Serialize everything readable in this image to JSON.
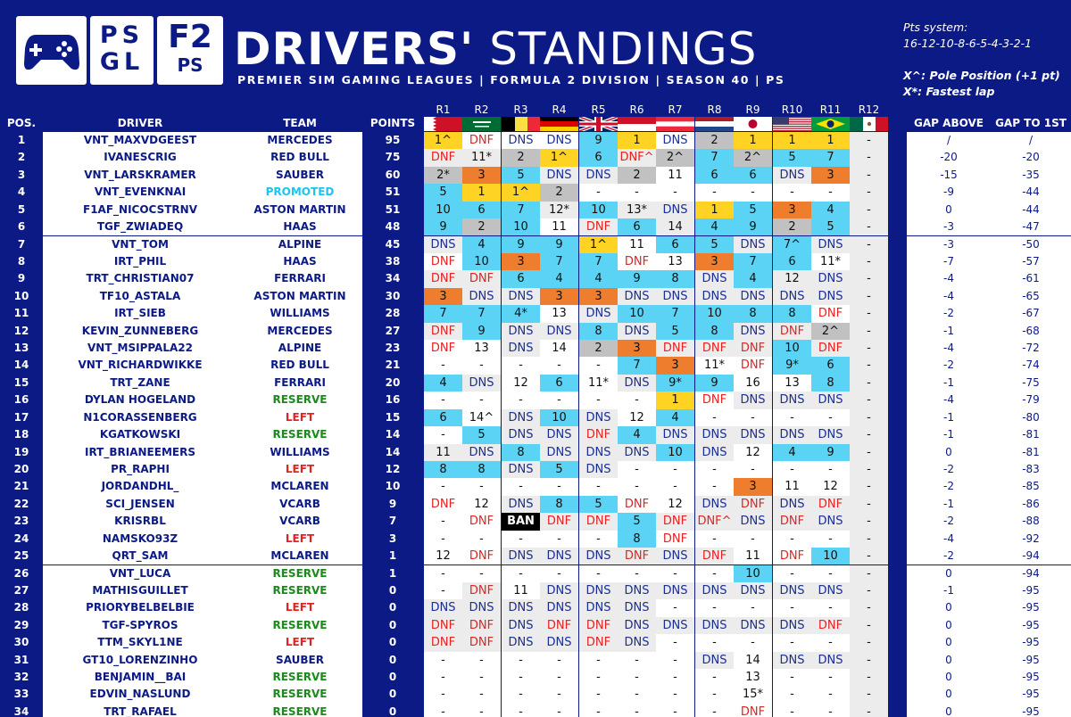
{
  "logos": {
    "logo1_icon": "gamepad-icon",
    "logo2": [
      "PS",
      "GL"
    ],
    "logo3": [
      "F2",
      "PS"
    ]
  },
  "title": {
    "bold": "DRIVERS'",
    "light": "STANDINGS"
  },
  "subtitle": "PREMIER SIM GAMING LEAGUES | FORMULA 2 DIVISION | SEASON 40 | PS",
  "points_system": {
    "label": "Pts system:",
    "value": "16-12-10-8-6-5-4-3-2-1",
    "legend": [
      "X^: Pole Position (+1 pt)",
      "X*: Fastest lap"
    ]
  },
  "colors": {
    "bg": "#0c1a85",
    "gold": "#ffd324",
    "silver": "#c1c1c1",
    "bronze": "#ee7e2e",
    "points": "#5bd3f5",
    "dnf": "#e52222",
    "dns": "#1b2e92",
    "reserve": "#1a8a1a",
    "left": "#e52222",
    "promoted": "#1fc3ef",
    "team": "#0c1a85"
  },
  "columns": {
    "pos": "POS.",
    "driver": "DRIVER",
    "team": "TEAM",
    "points": "POINTS",
    "gap_above": "GAP ABOVE",
    "gap_first": "GAP TO 1ST"
  },
  "rounds": [
    "R1",
    "R2",
    "R3",
    "R4",
    "R5",
    "R6",
    "R7",
    "R8",
    "R9",
    "R10",
    "R11",
    "R12"
  ],
  "flags": [
    "flag-bahrain-icon",
    "flag-saudi-arabia-icon",
    "flag-belgium-icon",
    "flag-germany-icon",
    "flag-united-kingdom-icon",
    "flag-monaco-icon",
    "flag-austria-icon",
    "flag-netherlands-icon",
    "flag-japan-icon",
    "flag-usa-icon",
    "flag-brazil-icon",
    "flag-mexico-icon"
  ],
  "rows": [
    {
      "pos": "1",
      "driver": "VNT_MAXVDGEEST",
      "team": "MERCEDES",
      "tc": "team",
      "points": "95",
      "r": [
        "1^",
        "DNF",
        "DNS",
        "DNS",
        "9",
        "1",
        "DNS",
        "2",
        "1",
        "1",
        "1",
        "-"
      ],
      "c": "YWWWBYWSYYYL",
      "ga": "/",
      "gf": "/"
    },
    {
      "pos": "2",
      "driver": "IVANESCRIG",
      "team": "RED BULL",
      "tc": "team",
      "points": "75",
      "r": [
        "DNF",
        "11*",
        "2",
        "1^",
        "6",
        "DNF^",
        "2^",
        "7",
        "2^",
        "5",
        "7",
        "-"
      ],
      "c": "LLSYBLSBSBBL",
      "ga": "-20",
      "gf": "-20"
    },
    {
      "pos": "3",
      "driver": "VNT_LARSKRAMER",
      "team": "SAUBER",
      "tc": "team",
      "points": "60",
      "r": [
        "2*",
        "3",
        "5",
        "DNS",
        "DNS",
        "2",
        "11",
        "6",
        "6",
        "DNS",
        "3",
        "-"
      ],
      "c": "SOBLLSWBBLOL",
      "ga": "-15",
      "gf": "-35"
    },
    {
      "pos": "4",
      "driver": "VNT_EVENKNAI",
      "team": "PROMOTED",
      "tc": "promoted",
      "points": "51",
      "r": [
        "5",
        "1",
        "1^",
        "2",
        "-",
        "-",
        "-",
        "-",
        "-",
        "-",
        "-",
        "-"
      ],
      "c": "BYYSWWWWWWWL",
      "ga": "-9",
      "gf": "-44"
    },
    {
      "pos": "5",
      "driver": "F1AF_NICOCSTRNV",
      "team": "ASTON MARTIN",
      "tc": "team",
      "points": "51",
      "r": [
        "10",
        "6",
        "7",
        "12*",
        "10",
        "13*",
        "DNS",
        "1",
        "5",
        "3",
        "4",
        "-"
      ],
      "c": "BBBLBLLYBOBL",
      "ga": "0",
      "gf": "-44"
    },
    {
      "pos": "6",
      "driver": "TGF_ZWIADEQ",
      "team": "HAAS",
      "tc": "team",
      "points": "48",
      "r": [
        "9",
        "2",
        "10",
        "11",
        "DNF",
        "6",
        "14",
        "4",
        "9",
        "2",
        "5",
        "-"
      ],
      "c": "BSBWLBLBBSBL",
      "ga": "-3",
      "gf": "-47"
    },
    {
      "pos": "7",
      "driver": "VNT_TOM",
      "team": "ALPINE",
      "tc": "team",
      "points": "45",
      "r": [
        "DNS",
        "4",
        "9",
        "9",
        "1^",
        "11",
        "6",
        "5",
        "DNS",
        "7^",
        "DNS",
        "-"
      ],
      "c": "LBBBYWBBLBLL",
      "ga": "-3",
      "gf": "-50"
    },
    {
      "pos": "8",
      "driver": "IRT_PHIL",
      "team": "HAAS",
      "tc": "team",
      "points": "38",
      "r": [
        "DNF",
        "10",
        "3",
        "7",
        "7",
        "DNF",
        "13",
        "3",
        "7",
        "6",
        "11*",
        "-"
      ],
      "c": "WBOBBWWOBBWL",
      "ga": "-7",
      "gf": "-57"
    },
    {
      "pos": "9",
      "driver": "TRT_CHRISTIAN07",
      "team": "FERRARI",
      "tc": "team",
      "points": "34",
      "r": [
        "DNF",
        "DNF",
        "6",
        "4",
        "4",
        "9",
        "8",
        "DNS",
        "4",
        "12",
        "DNS",
        "-"
      ],
      "c": "LLBBBBBLBLLL",
      "ga": "-4",
      "gf": "-61"
    },
    {
      "pos": "10",
      "driver": "TF10_ASTALA",
      "team": "ASTON MARTIN",
      "tc": "team",
      "points": "30",
      "r": [
        "3",
        "DNS",
        "DNS",
        "3",
        "3",
        "DNS",
        "DNS",
        "DNS",
        "DNS",
        "DNS",
        "DNS",
        "-"
      ],
      "c": "OLLOOLLLLLLL",
      "ga": "-4",
      "gf": "-65"
    },
    {
      "pos": "11",
      "driver": "IRT_SIEB",
      "team": "WILLIAMS",
      "tc": "team",
      "points": "28",
      "r": [
        "7",
        "7",
        "4*",
        "13",
        "DNS",
        "10",
        "7",
        "10",
        "8",
        "8",
        "DNF",
        "-"
      ],
      "c": "BBBWLBBBBBWL",
      "ga": "-2",
      "gf": "-67"
    },
    {
      "pos": "12",
      "driver": "KEVIN_ZUNNEBERG",
      "team": "MERCEDES",
      "tc": "team",
      "points": "27",
      "r": [
        "DNF",
        "9",
        "DNS",
        "DNS",
        "8",
        "DNS",
        "5",
        "8",
        "DNS",
        "DNF",
        "2^",
        "-"
      ],
      "c": "LBLLBLBBLLSL",
      "ga": "-1",
      "gf": "-68"
    },
    {
      "pos": "13",
      "driver": "VNT_MSIPPALA22",
      "team": "ALPINE",
      "tc": "team",
      "points": "23",
      "r": [
        "DNF",
        "13",
        "DNS",
        "14",
        "2",
        "3",
        "DNF",
        "DNF",
        "DNF",
        "10",
        "DNF",
        "-"
      ],
      "c": "WWLWSOLLLBLL",
      "ga": "-4",
      "gf": "-72"
    },
    {
      "pos": "14",
      "driver": "VNT_RICHARDWIKKE",
      "team": "RED BULL",
      "tc": "team",
      "points": "21",
      "r": [
        "-",
        "-",
        "-",
        "-",
        "-",
        "7",
        "3",
        "11*",
        "DNF",
        "9*",
        "6",
        "-"
      ],
      "c": "WWWWWBOWWBBL",
      "ga": "-2",
      "gf": "-74"
    },
    {
      "pos": "15",
      "driver": "TRT_ZANE",
      "team": "FERRARI",
      "tc": "team",
      "points": "20",
      "r": [
        "4",
        "DNS",
        "12",
        "6",
        "11*",
        "DNS",
        "9*",
        "9",
        "16",
        "13",
        "8",
        "-"
      ],
      "c": "BLWBWLBBWWBL",
      "ga": "-1",
      "gf": "-75"
    },
    {
      "pos": "16",
      "driver": "DYLAN HOGELAND",
      "team": "RESERVE",
      "tc": "reserve",
      "points": "16",
      "r": [
        "-",
        "-",
        "-",
        "-",
        "-",
        "-",
        "1",
        "DNF",
        "DNS",
        "DNS",
        "DNS",
        "-"
      ],
      "c": "WWWWWWYWLLLL",
      "ga": "-4",
      "gf": "-79"
    },
    {
      "pos": "17",
      "driver": "N1CORASSENBERG",
      "team": "LEFT",
      "tc": "left",
      "points": "15",
      "r": [
        "6",
        "14^",
        "DNS",
        "10",
        "DNS",
        "12",
        "4",
        "-",
        "-",
        "-",
        "-",
        "-"
      ],
      "c": "BWLBLWBWWWWL",
      "ga": "-1",
      "gf": "-80"
    },
    {
      "pos": "18",
      "driver": "KGATKOWSKI",
      "team": "RESERVE",
      "tc": "reserve",
      "points": "14",
      "r": [
        "-",
        "5",
        "DNS",
        "DNS",
        "DNF",
        "4",
        "DNS",
        "DNS",
        "DNS",
        "DNS",
        "DNS",
        "-"
      ],
      "c": "WBLLLBLLLLLL",
      "ga": "-1",
      "gf": "-81"
    },
    {
      "pos": "19",
      "driver": "IRT_BRIANEEMERS",
      "team": "WILLIAMS",
      "tc": "team",
      "points": "14",
      "r": [
        "11",
        "DNS",
        "8",
        "DNS",
        "DNS",
        "DNS",
        "10",
        "DNS",
        "12",
        "4",
        "9",
        "-"
      ],
      "c": "LLBLLLBLWBBL",
      "ga": "0",
      "gf": "-81"
    },
    {
      "pos": "20",
      "driver": "PR_RAPHI",
      "team": "LEFT",
      "tc": "left",
      "points": "12",
      "r": [
        "8",
        "8",
        "DNS",
        "5",
        "DNS",
        "-",
        "-",
        "-",
        "-",
        "-",
        "-",
        "-"
      ],
      "c": "BBLBLWWWWWWL",
      "ga": "-2",
      "gf": "-83"
    },
    {
      "pos": "21",
      "driver": "JORDANDHL_",
      "team": "MCLAREN",
      "tc": "team",
      "points": "10",
      "r": [
        "-",
        "-",
        "-",
        "-",
        "-",
        "-",
        "-",
        "-",
        "3",
        "11",
        "12",
        "-"
      ],
      "c": "WWWWWWWWOWWL",
      "ga": "-2",
      "gf": "-85"
    },
    {
      "pos": "22",
      "driver": "SCI_JENSEN",
      "team": "VCARB",
      "tc": "team",
      "points": "9",
      "r": [
        "DNF",
        "12",
        "DNS",
        "8",
        "5",
        "DNF",
        "12",
        "DNS",
        "DNF",
        "DNS",
        "DNF",
        "-"
      ],
      "c": "WWLBBWWLLLLL",
      "ga": "-1",
      "gf": "-86"
    },
    {
      "pos": "23",
      "driver": "KRISRBL",
      "team": "VCARB",
      "tc": "team",
      "points": "7",
      "r": [
        "-",
        "DNF",
        "BAN",
        "DNF",
        "DNF",
        "5",
        "DNF",
        "DNF^",
        "DNS",
        "DNF",
        "DNS",
        "-"
      ],
      "c": "WWKLLBLLLLLL",
      "ga": "-2",
      "gf": "-88"
    },
    {
      "pos": "24",
      "driver": "NAMSKO93Z",
      "team": "LEFT",
      "tc": "left",
      "points": "3",
      "r": [
        "-",
        "-",
        "-",
        "-",
        "-",
        "8",
        "DNF",
        "-",
        "-",
        "-",
        "-",
        "-"
      ],
      "c": "WWWWWBWWWWWL",
      "ga": "-4",
      "gf": "-92"
    },
    {
      "pos": "25",
      "driver": "QRT_SAM",
      "team": "MCLAREN",
      "tc": "team",
      "points": "1",
      "r": [
        "12",
        "DNF",
        "DNS",
        "DNS",
        "DNS",
        "DNF",
        "DNS",
        "DNF",
        "11",
        "DNF",
        "10",
        "-"
      ],
      "c": "WWLLLLLLWWBL",
      "ga": "-2",
      "gf": "-94"
    },
    {
      "pos": "26",
      "driver": "VNT_LUCA",
      "team": "RESERVE",
      "tc": "reserve",
      "points": "1",
      "r": [
        "-",
        "-",
        "-",
        "-",
        "-",
        "-",
        "-",
        "-",
        "10",
        "-",
        "-",
        "-"
      ],
      "c": "WWWWWWWWBWWL",
      "ga": "0",
      "gf": "-94"
    },
    {
      "pos": "27",
      "driver": "MATHISGUILLET",
      "team": "RESERVE",
      "tc": "reserve",
      "points": "0",
      "r": [
        "-",
        "DNF",
        "11",
        "DNS",
        "DNS",
        "DNS",
        "DNS",
        "DNS",
        "DNS",
        "DNS",
        "DNS",
        "-"
      ],
      "c": "WLWLLLLLLLLL",
      "ga": "-1",
      "gf": "-95"
    },
    {
      "pos": "28",
      "driver": "PRIORYBELBELBIE",
      "team": "LEFT",
      "tc": "left",
      "points": "0",
      "r": [
        "DNS",
        "DNS",
        "DNS",
        "DNS",
        "DNS",
        "DNS",
        "-",
        "-",
        "-",
        "-",
        "-",
        "-"
      ],
      "c": "LLLLLLWWWWWL",
      "ga": "0",
      "gf": "-95"
    },
    {
      "pos": "29",
      "driver": "TGF-SPYROS",
      "team": "RESERVE",
      "tc": "reserve",
      "points": "0",
      "r": [
        "DNF",
        "DNF",
        "DNS",
        "DNF",
        "DNF",
        "DNS",
        "DNS",
        "DNS",
        "DNS",
        "DNS",
        "DNF",
        "-"
      ],
      "c": "LLLLLLLLLLLL",
      "ga": "0",
      "gf": "-95"
    },
    {
      "pos": "30",
      "driver": "TTM_SKYL1NE",
      "team": "LEFT",
      "tc": "left",
      "points": "0",
      "r": [
        "DNF",
        "DNF",
        "DNS",
        "DNS",
        "DNF",
        "DNS",
        "-",
        "-",
        "-",
        "-",
        "-",
        "-"
      ],
      "c": "LLLLLLWWWWWL",
      "ga": "0",
      "gf": "-95"
    },
    {
      "pos": "31",
      "driver": "GT10_LORENZINHO",
      "team": "SAUBER",
      "tc": "team",
      "points": "0",
      "r": [
        "-",
        "-",
        "-",
        "-",
        "-",
        "-",
        "-",
        "DNS",
        "14",
        "DNS",
        "DNS",
        "-"
      ],
      "c": "WWWWWWWLWLLL",
      "ga": "0",
      "gf": "-95"
    },
    {
      "pos": "32",
      "driver": "BENJAMIN__BAI",
      "team": "RESERVE",
      "tc": "reserve",
      "points": "0",
      "r": [
        "-",
        "-",
        "-",
        "-",
        "-",
        "-",
        "-",
        "-",
        "13",
        "-",
        "-",
        "-"
      ],
      "c": "WWWWWWWWWWWL",
      "ga": "0",
      "gf": "-95"
    },
    {
      "pos": "33",
      "driver": "EDVIN_NASLUND",
      "team": "RESERVE",
      "tc": "reserve",
      "points": "0",
      "r": [
        "-",
        "-",
        "-",
        "-",
        "-",
        "-",
        "-",
        "-",
        "15*",
        "-",
        "-",
        "-"
      ],
      "c": "WWWWWWWWWWWL",
      "ga": "0",
      "gf": "-95"
    },
    {
      "pos": "34",
      "driver": "TRT_RAFAEL",
      "team": "RESERVE",
      "tc": "reserve",
      "points": "0",
      "r": [
        "-",
        "-",
        "-",
        "-",
        "-",
        "-",
        "-",
        "-",
        "DNF",
        "-",
        "-",
        "-"
      ],
      "c": "WWWWWWWWWWWL",
      "ga": "0",
      "gf": "-95"
    }
  ]
}
